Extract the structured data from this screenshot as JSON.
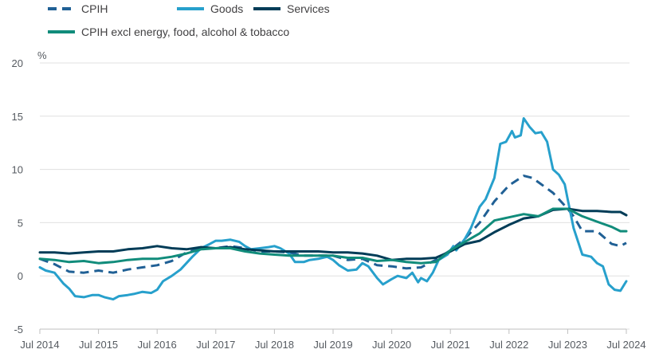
{
  "chart_data": {
    "type": "line",
    "ylabel": "%",
    "ylim": [
      -5,
      20
    ],
    "yticks": [
      "-5",
      "0",
      "5",
      "10",
      "15",
      "20"
    ],
    "xlim": [
      2014.5,
      2024.5
    ],
    "xticks": [
      {
        "x": 2014.5,
        "label": "Jul 2014"
      },
      {
        "x": 2015.5,
        "label": "Jul 2015"
      },
      {
        "x": 2016.5,
        "label": "Jul 2016"
      },
      {
        "x": 2017.5,
        "label": "Jul 2017"
      },
      {
        "x": 2018.5,
        "label": "Jul 2018"
      },
      {
        "x": 2019.5,
        "label": "Jul 2019"
      },
      {
        "x": 2020.5,
        "label": "Jul 2020"
      },
      {
        "x": 2021.5,
        "label": "Jul 2021"
      },
      {
        "x": 2022.5,
        "label": "Jul 2022"
      },
      {
        "x": 2023.5,
        "label": "Jul 2023"
      },
      {
        "x": 2024.5,
        "label": "Jul 2024"
      }
    ],
    "grid": "horizontal",
    "legend": "top",
    "series": [
      {
        "name": "CPIH",
        "color": "#206095",
        "dash": true,
        "points": [
          [
            2014.5,
            1.6
          ],
          [
            2014.75,
            1.1
          ],
          [
            2015.0,
            0.4
          ],
          [
            2015.25,
            0.3
          ],
          [
            2015.5,
            0.5
          ],
          [
            2015.75,
            0.3
          ],
          [
            2016.0,
            0.6
          ],
          [
            2016.25,
            0.8
          ],
          [
            2016.5,
            1.0
          ],
          [
            2016.75,
            1.4
          ],
          [
            2017.0,
            2.2
          ],
          [
            2017.25,
            2.6
          ],
          [
            2017.5,
            2.6
          ],
          [
            2017.75,
            2.8
          ],
          [
            2018.0,
            2.6
          ],
          [
            2018.25,
            2.3
          ],
          [
            2018.5,
            2.3
          ],
          [
            2018.75,
            2.2
          ],
          [
            2019.0,
            1.9
          ],
          [
            2019.25,
            1.9
          ],
          [
            2019.5,
            1.9
          ],
          [
            2019.75,
            1.5
          ],
          [
            2020.0,
            1.6
          ],
          [
            2020.25,
            1.0
          ],
          [
            2020.5,
            0.9
          ],
          [
            2020.75,
            0.7
          ],
          [
            2021.0,
            0.8
          ],
          [
            2021.25,
            1.5
          ],
          [
            2021.5,
            2.4
          ],
          [
            2021.75,
            3.5
          ],
          [
            2022.0,
            5.0
          ],
          [
            2022.25,
            7.0
          ],
          [
            2022.5,
            8.5
          ],
          [
            2022.75,
            9.4
          ],
          [
            2022.9,
            9.2
          ],
          [
            2023.0,
            8.8
          ],
          [
            2023.25,
            7.8
          ],
          [
            2023.5,
            6.3
          ],
          [
            2023.6,
            5.6
          ],
          [
            2023.75,
            4.2
          ],
          [
            2024.0,
            4.2
          ],
          [
            2024.25,
            3.0
          ],
          [
            2024.4,
            2.8
          ],
          [
            2024.5,
            3.1
          ]
        ]
      },
      {
        "name": "Goods",
        "color": "#27a0cc",
        "dash": false,
        "points": [
          [
            2014.5,
            0.8
          ],
          [
            2014.6,
            0.5
          ],
          [
            2014.75,
            0.3
          ],
          [
            2014.9,
            -0.7
          ],
          [
            2015.0,
            -1.2
          ],
          [
            2015.1,
            -1.9
          ],
          [
            2015.25,
            -2.0
          ],
          [
            2015.4,
            -1.8
          ],
          [
            2015.5,
            -1.8
          ],
          [
            2015.6,
            -2.0
          ],
          [
            2015.75,
            -2.2
          ],
          [
            2015.85,
            -1.9
          ],
          [
            2016.0,
            -1.8
          ],
          [
            2016.1,
            -1.7
          ],
          [
            2016.25,
            -1.5
          ],
          [
            2016.4,
            -1.6
          ],
          [
            2016.5,
            -1.3
          ],
          [
            2016.6,
            -0.5
          ],
          [
            2016.75,
            0.0
          ],
          [
            2016.9,
            0.6
          ],
          [
            2017.0,
            1.2
          ],
          [
            2017.1,
            1.8
          ],
          [
            2017.25,
            2.6
          ],
          [
            2017.4,
            3.0
          ],
          [
            2017.5,
            3.3
          ],
          [
            2017.6,
            3.3
          ],
          [
            2017.75,
            3.4
          ],
          [
            2017.9,
            3.2
          ],
          [
            2018.0,
            2.8
          ],
          [
            2018.1,
            2.5
          ],
          [
            2018.25,
            2.6
          ],
          [
            2018.4,
            2.7
          ],
          [
            2018.5,
            2.8
          ],
          [
            2018.6,
            2.6
          ],
          [
            2018.75,
            2.1
          ],
          [
            2018.85,
            1.3
          ],
          [
            2019.0,
            1.3
          ],
          [
            2019.1,
            1.5
          ],
          [
            2019.25,
            1.6
          ],
          [
            2019.4,
            1.8
          ],
          [
            2019.5,
            1.5
          ],
          [
            2019.6,
            1.0
          ],
          [
            2019.75,
            0.5
          ],
          [
            2019.9,
            0.6
          ],
          [
            2020.0,
            1.2
          ],
          [
            2020.1,
            0.9
          ],
          [
            2020.25,
            -0.2
          ],
          [
            2020.35,
            -0.8
          ],
          [
            2020.5,
            -0.3
          ],
          [
            2020.6,
            0.0
          ],
          [
            2020.75,
            -0.2
          ],
          [
            2020.85,
            0.3
          ],
          [
            2020.95,
            -0.6
          ],
          [
            2021.0,
            -0.2
          ],
          [
            2021.1,
            -0.5
          ],
          [
            2021.2,
            0.3
          ],
          [
            2021.3,
            1.5
          ],
          [
            2021.45,
            2.0
          ],
          [
            2021.55,
            2.8
          ],
          [
            2021.6,
            2.4
          ],
          [
            2021.75,
            3.5
          ],
          [
            2021.85,
            4.5
          ],
          [
            2022.0,
            6.5
          ],
          [
            2022.1,
            7.2
          ],
          [
            2022.25,
            9.2
          ],
          [
            2022.35,
            12.4
          ],
          [
            2022.45,
            12.6
          ],
          [
            2022.55,
            13.6
          ],
          [
            2022.6,
            13.0
          ],
          [
            2022.7,
            13.2
          ],
          [
            2022.75,
            14.8
          ],
          [
            2022.85,
            14.0
          ],
          [
            2022.95,
            13.4
          ],
          [
            2023.05,
            13.5
          ],
          [
            2023.15,
            12.6
          ],
          [
            2023.25,
            10.0
          ],
          [
            2023.35,
            9.5
          ],
          [
            2023.45,
            8.6
          ],
          [
            2023.5,
            7.2
          ],
          [
            2023.6,
            4.5
          ],
          [
            2023.75,
            2.0
          ],
          [
            2023.9,
            1.8
          ],
          [
            2024.0,
            1.2
          ],
          [
            2024.1,
            0.9
          ],
          [
            2024.2,
            -0.8
          ],
          [
            2024.3,
            -1.3
          ],
          [
            2024.4,
            -1.4
          ],
          [
            2024.5,
            -0.5
          ]
        ]
      },
      {
        "name": "Services",
        "color": "#003c57",
        "dash": false,
        "points": [
          [
            2014.5,
            2.2
          ],
          [
            2014.75,
            2.2
          ],
          [
            2015.0,
            2.1
          ],
          [
            2015.25,
            2.2
          ],
          [
            2015.5,
            2.3
          ],
          [
            2015.75,
            2.3
          ],
          [
            2016.0,
            2.5
          ],
          [
            2016.25,
            2.6
          ],
          [
            2016.5,
            2.8
          ],
          [
            2016.75,
            2.6
          ],
          [
            2017.0,
            2.5
          ],
          [
            2017.25,
            2.7
          ],
          [
            2017.5,
            2.6
          ],
          [
            2017.75,
            2.7
          ],
          [
            2018.0,
            2.5
          ],
          [
            2018.25,
            2.4
          ],
          [
            2018.5,
            2.3
          ],
          [
            2018.75,
            2.3
          ],
          [
            2019.0,
            2.3
          ],
          [
            2019.25,
            2.3
          ],
          [
            2019.5,
            2.2
          ],
          [
            2019.75,
            2.2
          ],
          [
            2020.0,
            2.1
          ],
          [
            2020.25,
            1.9
          ],
          [
            2020.5,
            1.5
          ],
          [
            2020.75,
            1.6
          ],
          [
            2021.0,
            1.6
          ],
          [
            2021.25,
            1.7
          ],
          [
            2021.5,
            2.3
          ],
          [
            2021.75,
            3.0
          ],
          [
            2022.0,
            3.3
          ],
          [
            2022.25,
            4.1
          ],
          [
            2022.5,
            4.8
          ],
          [
            2022.75,
            5.4
          ],
          [
            2023.0,
            5.6
          ],
          [
            2023.25,
            6.2
          ],
          [
            2023.5,
            6.3
          ],
          [
            2023.75,
            6.1
          ],
          [
            2024.0,
            6.1
          ],
          [
            2024.25,
            6.0
          ],
          [
            2024.4,
            6.0
          ],
          [
            2024.5,
            5.7
          ]
        ]
      },
      {
        "name": "CPIH excl energy, food, alcohol & tobacco",
        "color": "#118c7b",
        "dash": false,
        "points": [
          [
            2014.5,
            1.6
          ],
          [
            2014.75,
            1.5
          ],
          [
            2015.0,
            1.3
          ],
          [
            2015.25,
            1.4
          ],
          [
            2015.5,
            1.2
          ],
          [
            2015.75,
            1.3
          ],
          [
            2016.0,
            1.5
          ],
          [
            2016.25,
            1.6
          ],
          [
            2016.5,
            1.6
          ],
          [
            2016.75,
            1.8
          ],
          [
            2017.0,
            2.1
          ],
          [
            2017.25,
            2.5
          ],
          [
            2017.5,
            2.6
          ],
          [
            2017.75,
            2.6
          ],
          [
            2018.0,
            2.3
          ],
          [
            2018.25,
            2.1
          ],
          [
            2018.5,
            2.0
          ],
          [
            2018.75,
            1.9
          ],
          [
            2019.0,
            1.9
          ],
          [
            2019.25,
            1.9
          ],
          [
            2019.5,
            1.9
          ],
          [
            2019.75,
            1.7
          ],
          [
            2020.0,
            1.7
          ],
          [
            2020.25,
            1.4
          ],
          [
            2020.5,
            1.5
          ],
          [
            2020.75,
            1.3
          ],
          [
            2021.0,
            1.2
          ],
          [
            2021.25,
            1.3
          ],
          [
            2021.5,
            2.4
          ],
          [
            2021.75,
            3.2
          ],
          [
            2022.0,
            4.0
          ],
          [
            2022.25,
            5.2
          ],
          [
            2022.5,
            5.5
          ],
          [
            2022.75,
            5.8
          ],
          [
            2023.0,
            5.6
          ],
          [
            2023.25,
            6.3
          ],
          [
            2023.5,
            6.3
          ],
          [
            2023.75,
            5.6
          ],
          [
            2024.0,
            5.1
          ],
          [
            2024.25,
            4.6
          ],
          [
            2024.4,
            4.2
          ],
          [
            2024.5,
            4.2
          ]
        ]
      }
    ]
  },
  "colors": {
    "grid": "#e0e0e0",
    "axis": "#bfbfbf",
    "text": "#555a60"
  }
}
